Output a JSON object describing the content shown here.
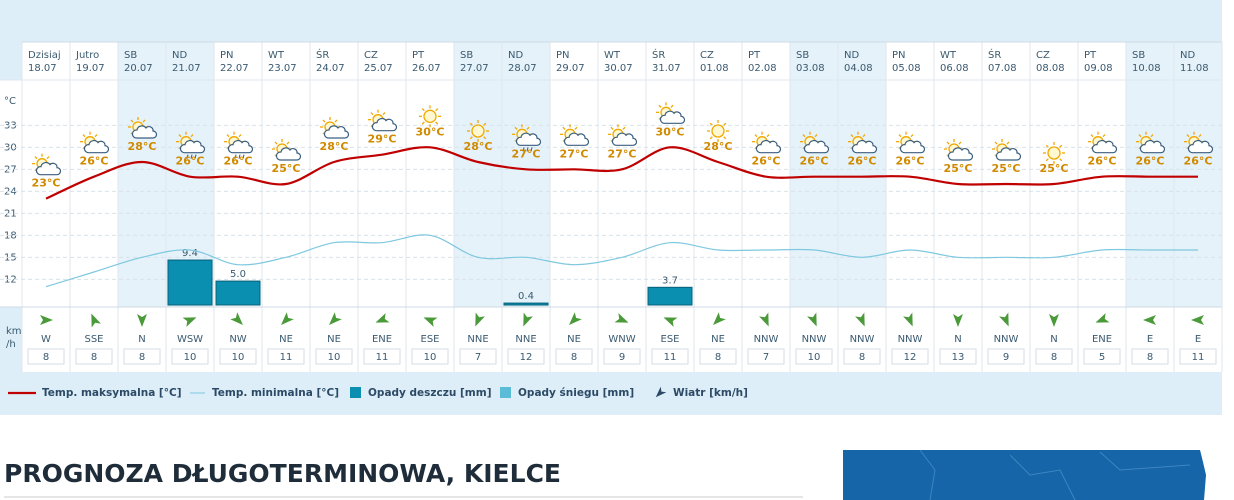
{
  "chart_data": {
    "type": "weather",
    "days": [
      "Dzisiaj",
      "Jutro",
      "SB",
      "ND",
      "PN",
      "WT",
      "ŚR",
      "CZ",
      "PT",
      "SB",
      "ND",
      "PN",
      "WT",
      "ŚR",
      "CZ",
      "PT",
      "SB",
      "ND",
      "PN",
      "WT",
      "ŚR",
      "CZ",
      "PT",
      "SB",
      "ND"
    ],
    "dates": [
      "18.07",
      "19.07",
      "20.07",
      "21.07",
      "22.07",
      "23.07",
      "24.07",
      "25.07",
      "26.07",
      "27.07",
      "28.07",
      "29.07",
      "30.07",
      "31.07",
      "01.08",
      "02.08",
      "03.08",
      "04.08",
      "05.08",
      "06.08",
      "07.08",
      "08.08",
      "09.08",
      "10.08",
      "11.08"
    ],
    "shaded": [
      2,
      3,
      9,
      10,
      16,
      17,
      23,
      24
    ],
    "icons": [
      "partly",
      "partly",
      "partly",
      "rain",
      "rain",
      "partly",
      "partly",
      "partly",
      "sun",
      "sun",
      "rain",
      "partly",
      "partly",
      "partly",
      "sun",
      "partly",
      "partly",
      "partly",
      "partly",
      "partly",
      "partly",
      "sun",
      "partly",
      "partly",
      "partly"
    ],
    "yunit": "°C",
    "ylim": [
      8.5,
      38.5
    ],
    "yticks": [
      12,
      15,
      18,
      21,
      24,
      27,
      30,
      33
    ],
    "y2lim": [
      0,
      46
    ],
    "grid": true,
    "series": [
      {
        "name": "Temp. maksymalna [°C]",
        "color": "#c00000",
        "values": [
          23,
          26,
          28,
          26,
          26,
          25,
          28,
          29,
          30,
          28,
          27,
          27,
          27,
          30,
          28,
          26,
          26,
          26,
          26,
          25,
          25,
          25,
          26,
          26,
          26
        ],
        "value_labels": [
          "23°C",
          "26°C",
          "28°C",
          "26°C",
          "26°C",
          "25°C",
          "28°C",
          "29°C",
          "30°C",
          "28°C",
          "27°C",
          "27°C",
          "27°C",
          "30°C",
          "28°C",
          "26°C",
          "26°C",
          "26°C",
          "26°C",
          "25°C",
          "25°C",
          "25°C",
          "26°C",
          "26°C",
          "26°C"
        ]
      },
      {
        "name": "Temp. minimalna [°C]",
        "color": "#7ec8e0",
        "values": [
          11,
          13,
          15,
          16,
          14,
          15,
          17,
          17,
          18,
          15,
          15,
          14,
          15,
          17,
          16,
          16,
          16,
          15,
          16,
          15,
          15,
          15,
          16,
          16,
          16
        ]
      },
      {
        "name": "Opady deszczu [mm]",
        "color": "#0a8fb0",
        "axis": "y2",
        "values": [
          null,
          null,
          null,
          9.4,
          5.0,
          null,
          null,
          null,
          null,
          null,
          0.4,
          null,
          null,
          3.7,
          null,
          null,
          null,
          null,
          null,
          null,
          null,
          null,
          null,
          null,
          null
        ],
        "value_labels": [
          null,
          null,
          null,
          "9.4",
          "5.0",
          null,
          null,
          null,
          null,
          null,
          "0.4",
          null,
          null,
          "3.7",
          null,
          null,
          null,
          null,
          null,
          null,
          null,
          null,
          null,
          null,
          null
        ]
      },
      {
        "name": "Opady śniegu [mm]",
        "color": "#5bbcd8",
        "axis": "y2",
        "values": [
          null,
          null,
          null,
          null,
          null,
          null,
          null,
          null,
          null,
          null,
          null,
          null,
          null,
          null,
          null,
          null,
          null,
          null,
          null,
          null,
          null,
          null,
          null,
          null,
          null
        ]
      },
      {
        "name": "Wiatr [km/h]",
        "color": "#2c4a66",
        "values": [
          8,
          8,
          8,
          10,
          10,
          11,
          10,
          11,
          10,
          7,
          12,
          8,
          9,
          11,
          8,
          7,
          10,
          8,
          12,
          13,
          9,
          8,
          5,
          8,
          11
        ],
        "directions": [
          "W",
          "SSE",
          "N",
          "WSW",
          "NW",
          "NE",
          "NE",
          "ENE",
          "ESE",
          "NNE",
          "NNE",
          "NE",
          "WNW",
          "ESE",
          "NE",
          "NNW",
          "NNW",
          "NNW",
          "NNW",
          "N",
          "NNW",
          "N",
          "ENE",
          "E",
          "E"
        ]
      }
    ],
    "wind_unit": [
      "km",
      "/h"
    ]
  },
  "section_title": "PROGNOZA DŁUGOTERMINOWA, KIELCE"
}
